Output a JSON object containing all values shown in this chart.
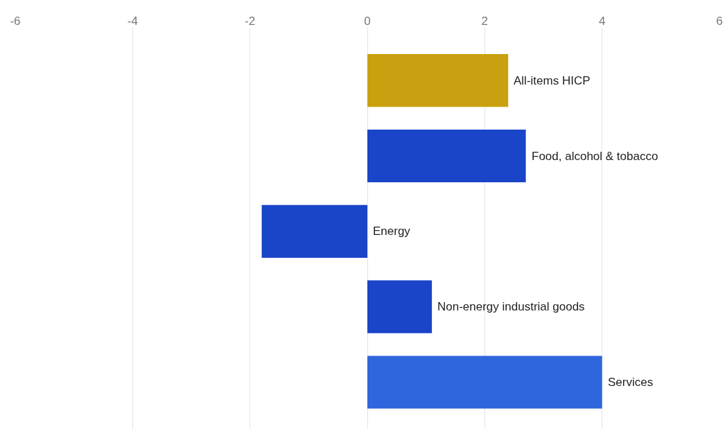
{
  "chart_data": {
    "type": "bar",
    "orientation": "horizontal",
    "categories": [
      "All-items HICP",
      "Food, alcohol & tobacco",
      "Energy",
      "Non-energy industrial goods",
      "Services"
    ],
    "values": [
      2.4,
      2.7,
      -1.8,
      1.1,
      4.0
    ],
    "colors": [
      "#c9a00f",
      "#1a45c8",
      "#1a45c8",
      "#1a45c8",
      "#2f66dd"
    ],
    "xlim": [
      -6,
      6
    ],
    "xticks": [
      -6,
      -4,
      -2,
      0,
      2,
      4,
      6
    ],
    "grid": "x",
    "tick_labels": "x"
  }
}
